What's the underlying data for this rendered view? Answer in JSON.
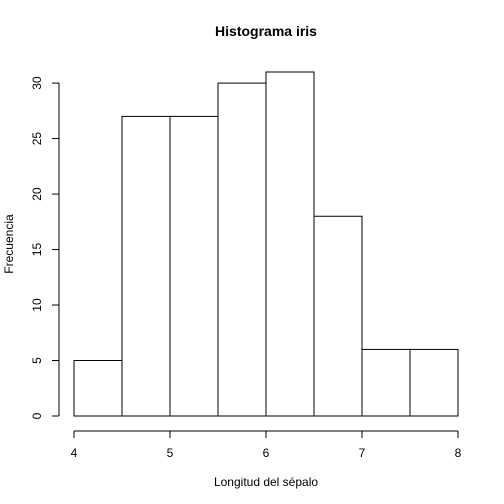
{
  "chart_data": {
    "type": "bar",
    "title": "Histograma iris",
    "xlabel": "Longitud del sépalo",
    "ylabel": "Frecuencia",
    "bins": [
      {
        "start": 4.0,
        "end": 4.5,
        "count": 5
      },
      {
        "start": 4.5,
        "end": 5.0,
        "count": 27
      },
      {
        "start": 5.0,
        "end": 5.5,
        "count": 27
      },
      {
        "start": 5.5,
        "end": 6.0,
        "count": 30
      },
      {
        "start": 6.0,
        "end": 6.5,
        "count": 31
      },
      {
        "start": 6.5,
        "end": 7.0,
        "count": 18
      },
      {
        "start": 7.0,
        "end": 7.5,
        "count": 6
      },
      {
        "start": 7.5,
        "end": 8.0,
        "count": 6
      }
    ],
    "xlim": [
      4,
      8
    ],
    "ylim": [
      0,
      31
    ],
    "x_ticks": [
      "4",
      "5",
      "6",
      "7",
      "8"
    ],
    "y_ticks": [
      "0",
      "5",
      "10",
      "15",
      "20",
      "25",
      "30"
    ],
    "bar_fill": "#ffffff",
    "bar_stroke": "#000000",
    "grid": false
  }
}
